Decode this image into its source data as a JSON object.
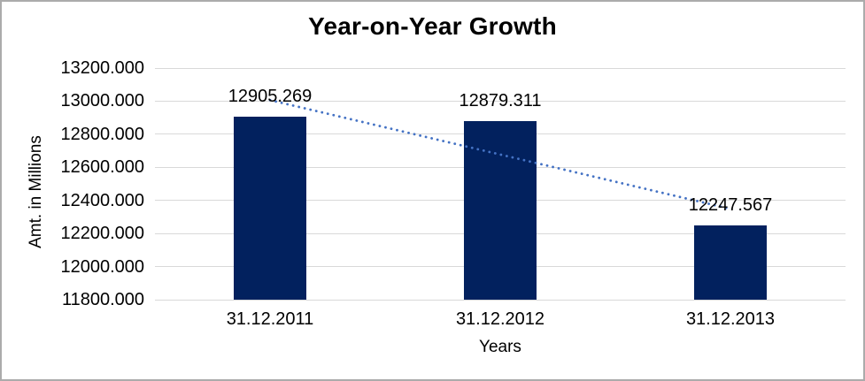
{
  "chart_data": {
    "type": "bar",
    "title": "Year-on-Year Growth",
    "xlabel": "Years",
    "ylabel": "Amt. in Millions",
    "categories": [
      "31.12.2011",
      "31.12.2012",
      "31.12.2013"
    ],
    "values": [
      12905.269,
      12879.311,
      12247.567
    ],
    "data_labels": [
      "12905.269",
      "12879.311",
      "12247.567"
    ],
    "y_ticks": [
      13200,
      13000,
      12800,
      12600,
      12400,
      12200,
      12000,
      11800
    ],
    "y_tick_labels": [
      "13200.000",
      "13000.000",
      "12800.000",
      "12600.000",
      "12400.000",
      "12200.000",
      "12000.000",
      "11800.000"
    ],
    "ylim": [
      11800,
      13200
    ],
    "grid": true,
    "legend": "none",
    "trendline": {
      "type": "linear",
      "style": "dotted"
    },
    "colors": {
      "bar": "#02215E",
      "trendline": "#4472C4",
      "gridline": "#D9D9D9",
      "text": "#000000",
      "background": "#FFFFFF",
      "border": "#ABABAB"
    }
  }
}
